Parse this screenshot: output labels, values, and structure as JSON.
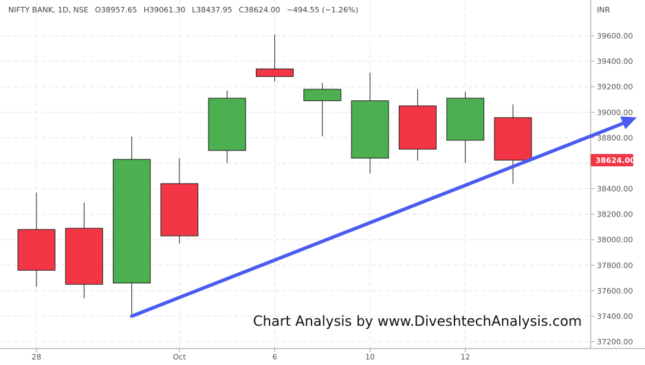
{
  "header": {
    "symbol_line": "NIFTY BANK, 1D, NSE",
    "o_label": "O",
    "o_value": "38957.65",
    "h_label": "H",
    "h_value": "39061.30",
    "l_label": "L",
    "l_value": "38437.95",
    "c_label": "C",
    "c_value": "38624.00",
    "change": "−494.55 (−1.26%)"
  },
  "currency": "INR",
  "last_price_label": "38624.00",
  "watermark": "Chart Analysis by www.DiveshtechAnalysis.com",
  "colors": {
    "up": "#4caf50",
    "down": "#f23645",
    "wick": "#222222",
    "arrow": "#4a5cf0",
    "price_label_bg": "#f23645"
  },
  "chart_data": {
    "type": "candlestick",
    "x_tick_labels": [
      "28",
      "Oct",
      "6",
      "10",
      "12"
    ],
    "y_tick_labels": [
      "37200.00",
      "37400.00",
      "37600.00",
      "37800.00",
      "38000.00",
      "38200.00",
      "38400.00",
      "38600.00",
      "38800.00",
      "39000.00",
      "39200.00",
      "39400.00",
      "39600.00"
    ],
    "ylim": [
      37150,
      39800
    ],
    "grid": true,
    "candles": [
      {
        "open": 38080,
        "high": 38370,
        "low": 37630,
        "close": 37760
      },
      {
        "open": 38090,
        "high": 38290,
        "low": 37540,
        "close": 37650
      },
      {
        "open": 37660,
        "high": 38810,
        "low": 37390,
        "close": 38630
      },
      {
        "open": 38440,
        "high": 38640,
        "low": 37970,
        "close": 38030
      },
      {
        "open": 38700,
        "high": 39170,
        "low": 38600,
        "close": 39110
      },
      {
        "open": 39340,
        "high": 39610,
        "low": 39240,
        "close": 39280
      },
      {
        "open": 39090,
        "high": 39230,
        "low": 38810,
        "close": 39180
      },
      {
        "open": 38640,
        "high": 39310,
        "low": 38520,
        "close": 39090
      },
      {
        "open": 39050,
        "high": 39180,
        "low": 38620,
        "close": 38710
      },
      {
        "open": 38780,
        "high": 39160,
        "low": 38600,
        "close": 39110
      },
      {
        "open": 38957.65,
        "high": 39061.3,
        "low": 38437.95,
        "close": 38624.0
      }
    ],
    "trend_arrow": {
      "start": {
        "candle_index": 2,
        "value": 37400
      },
      "end": {
        "candle_index": 12.6,
        "value": 38960
      }
    }
  }
}
